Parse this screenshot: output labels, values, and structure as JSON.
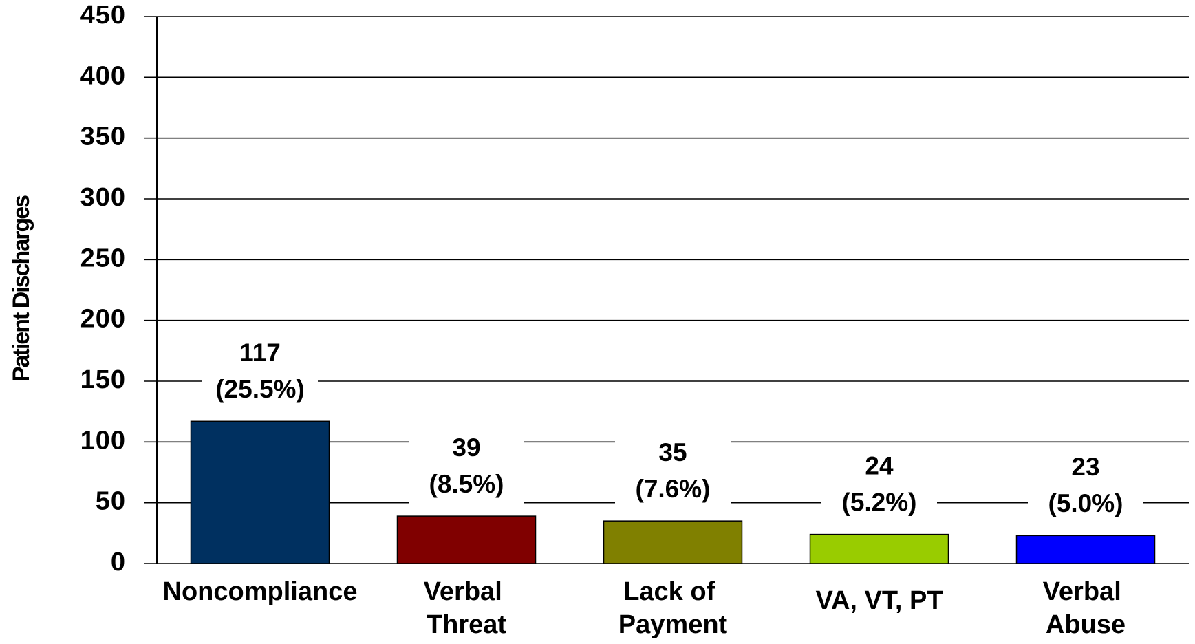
{
  "chart_data": {
    "type": "bar",
    "y_label": "Patient Discharges",
    "categories": [
      "Noncompliance",
      "Verbal\nThreat",
      "Lack of\nPayment",
      "VA, VT, PT",
      "Verbal\nAbuse"
    ],
    "values": [
      117,
      39,
      35,
      24,
      23
    ],
    "shares": [
      25.5,
      8.5,
      7.6,
      5.2,
      5.0
    ],
    "share_labels": [
      "(25.5%)",
      "(8.5%)",
      "(7.6%)",
      "(5.2%)",
      "(5.0%)"
    ],
    "colors": [
      "#003060",
      "#800000",
      "#808000",
      "#99cc00",
      "#0000ff"
    ],
    "ylim": [
      0,
      450
    ],
    "yticks": [
      0,
      50,
      100,
      150,
      200,
      250,
      300,
      350,
      400,
      450
    ],
    "grid": true
  }
}
